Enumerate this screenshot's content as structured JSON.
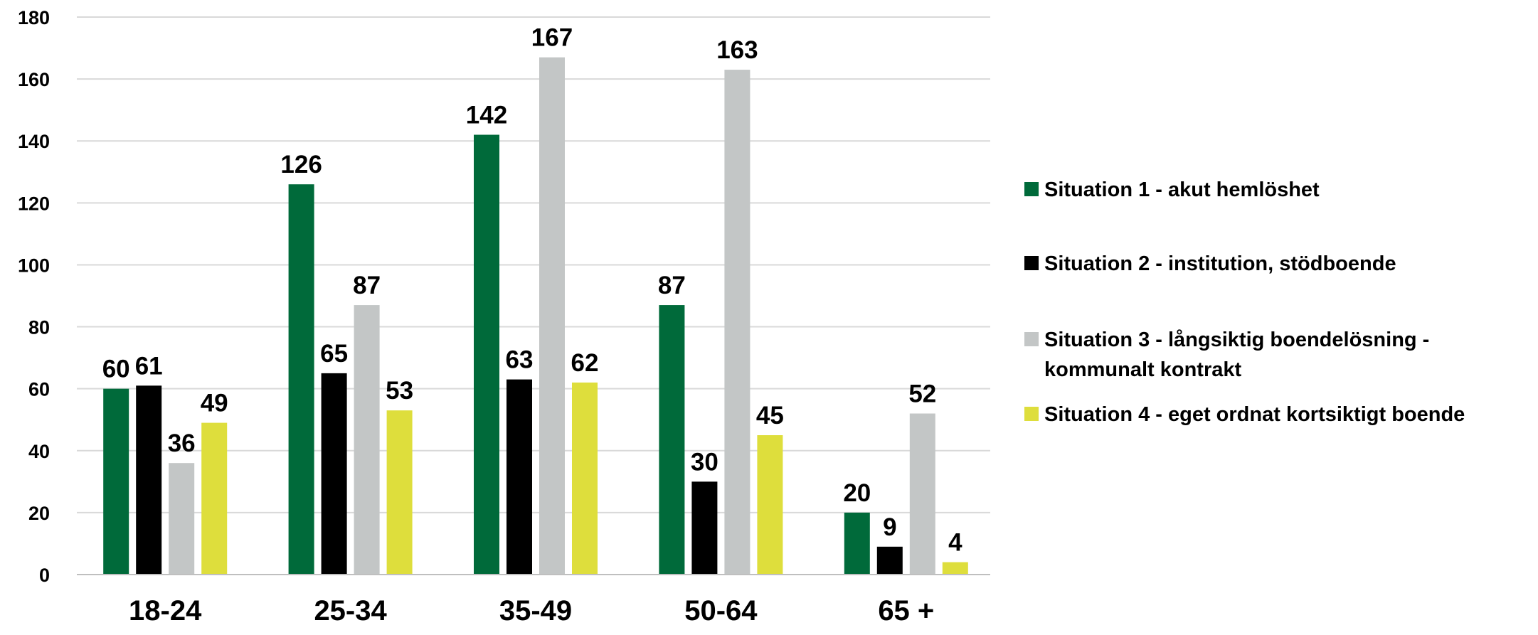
{
  "chart_data": {
    "type": "bar",
    "categories": [
      "18-24",
      "25-34",
      "35-49",
      "50-64",
      "65 +"
    ],
    "series": [
      {
        "name": "Situation 1 - akut hemlöshet",
        "values": [
          60,
          126,
          142,
          87,
          20
        ],
        "color": "#006a3a"
      },
      {
        "name": "Situation 2 - institution, stödboende",
        "values": [
          61,
          65,
          63,
          30,
          9
        ],
        "color": "#000000"
      },
      {
        "name": "Situation 3 - långsiktig boendelösning - kommunalt kontrakt",
        "name_lines": [
          "Situation 3 - långsiktig boendelösning -",
          "kommunalt kontrakt"
        ],
        "values": [
          36,
          87,
          167,
          163,
          52
        ],
        "color": "#c3c6c6"
      },
      {
        "name": "Situation 4 - eget ordnat kortsiktigt boende",
        "values": [
          49,
          53,
          62,
          45,
          4
        ],
        "color": "#dede3c"
      }
    ],
    "ylim": [
      0,
      180
    ],
    "yticks": [
      0,
      20,
      40,
      60,
      80,
      100,
      120,
      140,
      160,
      180
    ],
    "grid": true,
    "legend_position": "right",
    "data_labels": true
  }
}
